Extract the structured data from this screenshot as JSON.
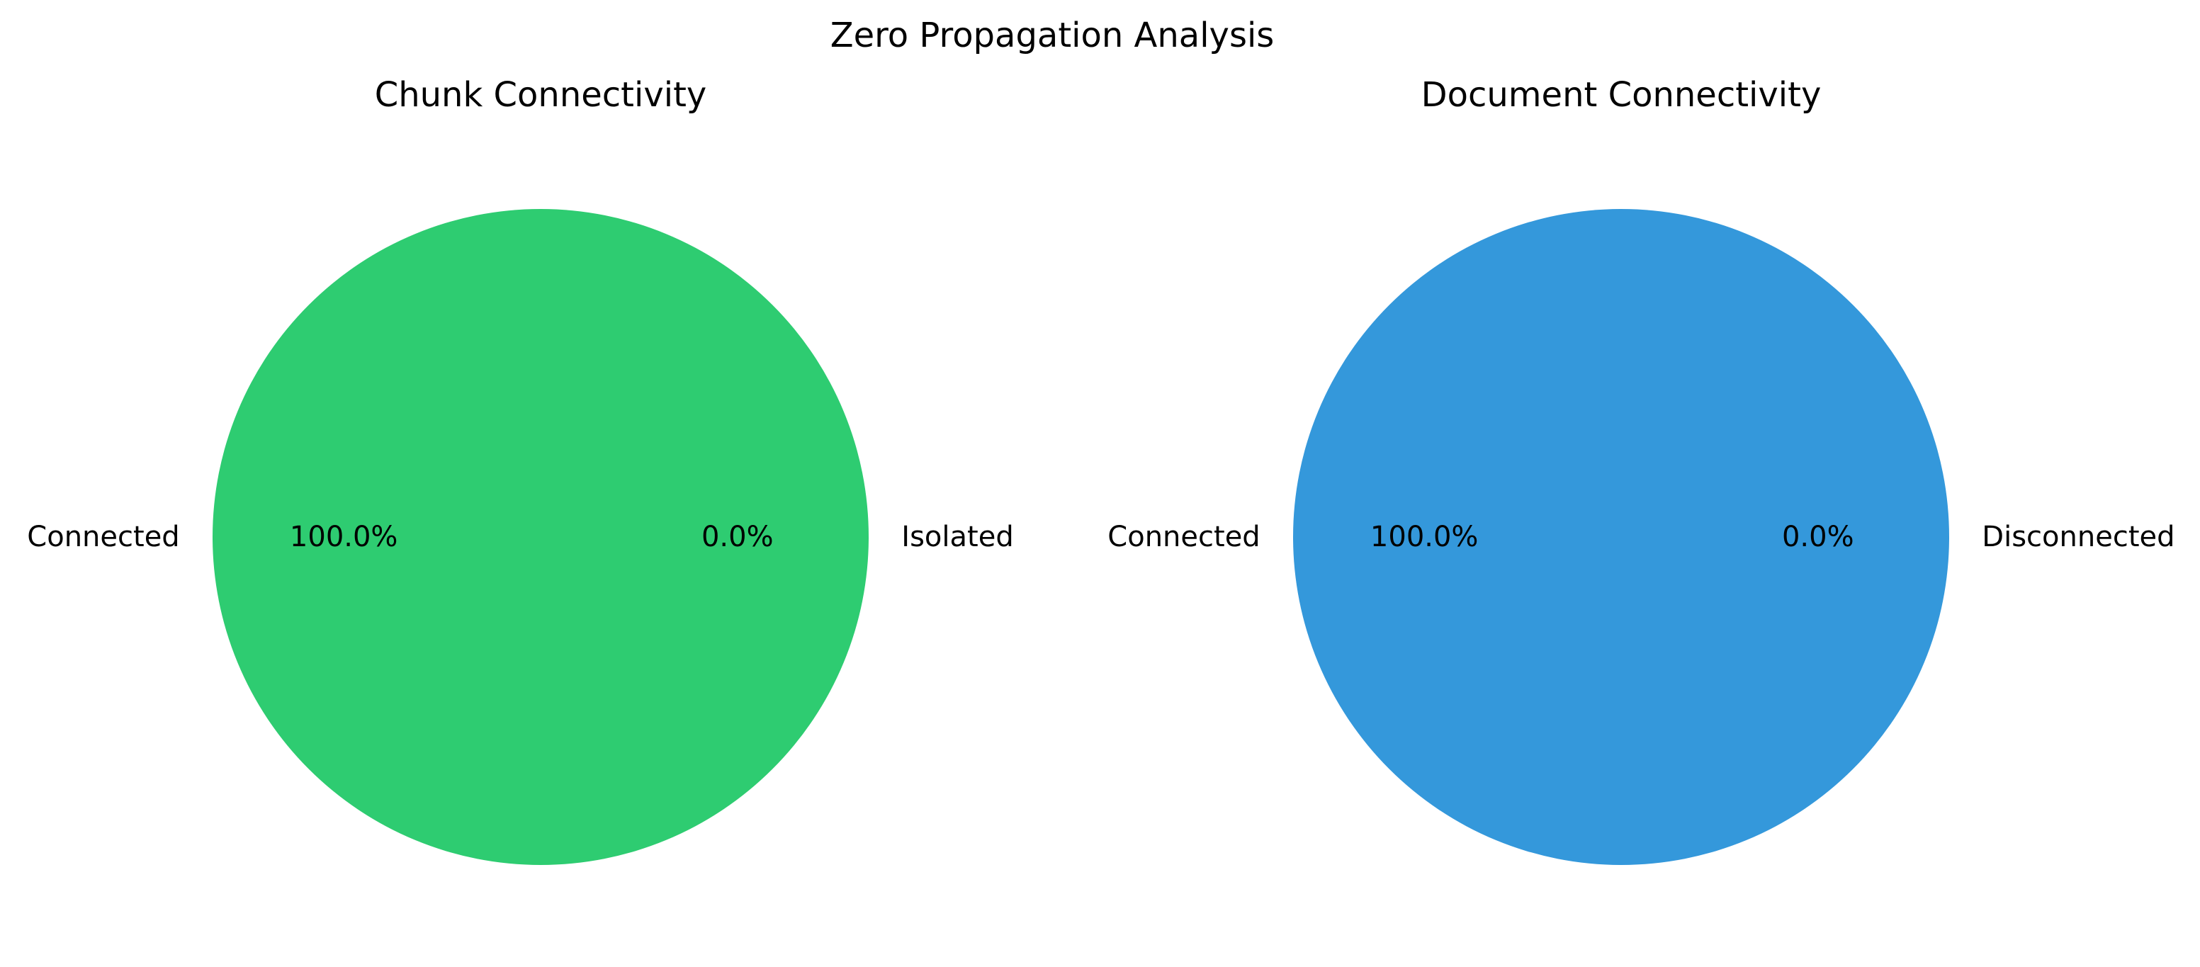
{
  "figure": {
    "title": "Zero Propagation Analysis"
  },
  "chart_data": [
    {
      "type": "pie",
      "title": "Chunk Connectivity",
      "labels": [
        "Connected",
        "Isolated"
      ],
      "values": [
        100.0,
        0.0
      ],
      "percent_labels": [
        "100.0%",
        "0.0%"
      ],
      "colors": [
        "#2ecc71",
        "#e74c3c"
      ]
    },
    {
      "type": "pie",
      "title": "Document Connectivity",
      "labels": [
        "Connected",
        "Disconnected"
      ],
      "values": [
        100.0,
        0.0
      ],
      "percent_labels": [
        "100.0%",
        "0.0%"
      ],
      "colors": [
        "#3498db",
        "#e67e22"
      ]
    }
  ]
}
